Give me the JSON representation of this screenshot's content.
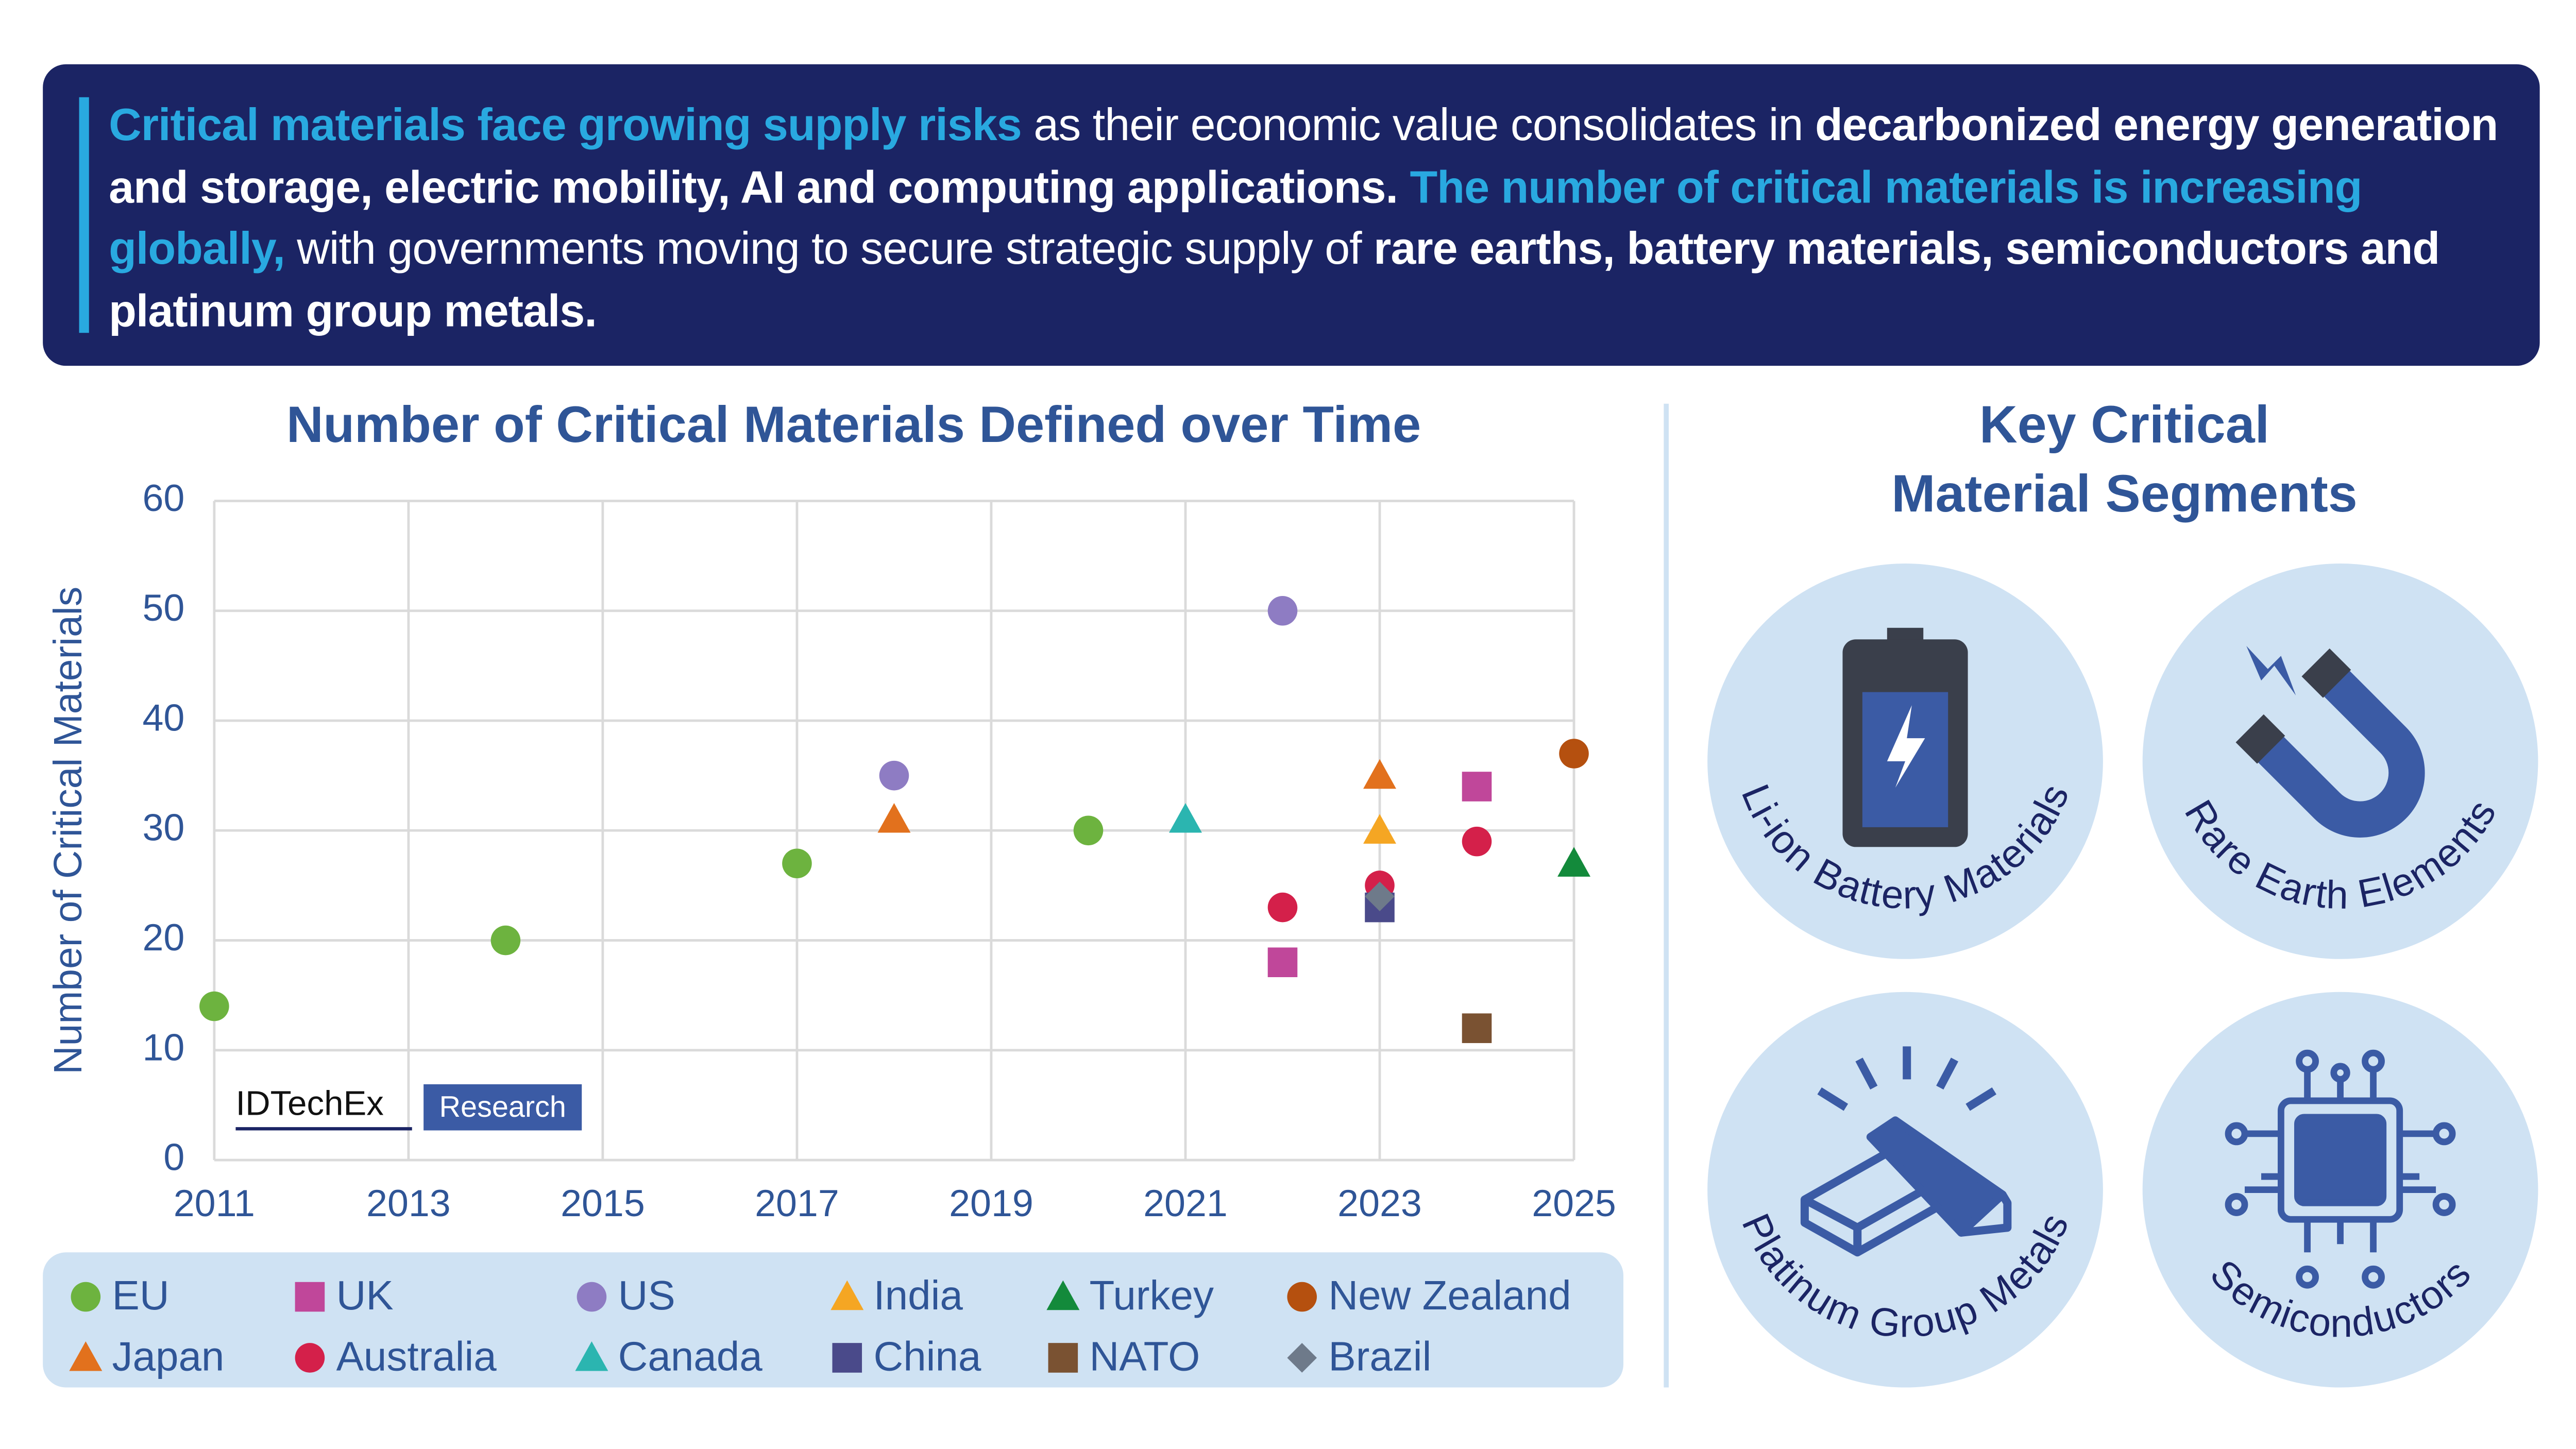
{
  "header": {
    "segments": [
      {
        "text": "Critical materials face growing supply risks",
        "style": "highlight"
      },
      {
        "text": " as their economic value consolidates in ",
        "style": "normal"
      },
      {
        "text": "decarbonized energy generation and storage, electric mobility, AI and computing applications.",
        "style": "bold"
      },
      {
        "text": " The number of critical materials is increasing globally,",
        "style": "highlight"
      },
      {
        "text": " with governments moving to secure strategic supply of ",
        "style": "normal"
      },
      {
        "text": "rare earths, battery materials, semiconductors and platinum group metals.",
        "style": "bold"
      }
    ]
  },
  "chart_data": {
    "type": "scatter",
    "title": "Number of Critical Materials Defined over Time",
    "y_label": "Number of Critical Materials",
    "xlim": [
      2011,
      2025
    ],
    "xticks": [
      2011,
      2013,
      2015,
      2017,
      2019,
      2021,
      2023,
      2025
    ],
    "ylim": [
      0,
      60
    ],
    "yticks": [
      0,
      10,
      20,
      30,
      40,
      50,
      60
    ],
    "grid": true,
    "series": [
      {
        "name": "EU",
        "color": "#6db33f",
        "marker": "circle",
        "x": [
          2011,
          2014,
          2017,
          2020
        ],
        "values": [
          14,
          20,
          27,
          30
        ]
      },
      {
        "name": "UK",
        "color": "#c0479a",
        "marker": "square",
        "x": [
          2022,
          2024
        ],
        "values": [
          18,
          34
        ]
      },
      {
        "name": "US",
        "color": "#8e7cc3",
        "marker": "circle",
        "x": [
          2018,
          2022
        ],
        "values": [
          35,
          50
        ]
      },
      {
        "name": "India",
        "color": "#f5a623",
        "marker": "triangle",
        "x": [
          2023
        ],
        "values": [
          30
        ]
      },
      {
        "name": "Turkey",
        "color": "#138a3b",
        "marker": "triangle",
        "x": [
          2025
        ],
        "values": [
          27
        ]
      },
      {
        "name": "New Zealand",
        "color": "#b5500f",
        "marker": "circle",
        "x": [
          2025
        ],
        "values": [
          37
        ]
      },
      {
        "name": "Japan",
        "color": "#e2711d",
        "marker": "triangle",
        "x": [
          2018,
          2023
        ],
        "values": [
          31,
          35
        ]
      },
      {
        "name": "Australia",
        "color": "#d4204a",
        "marker": "circle",
        "x": [
          2022,
          2023,
          2024
        ],
        "values": [
          23,
          25,
          29
        ]
      },
      {
        "name": "Canada",
        "color": "#2bb5b0",
        "marker": "triangle",
        "x": [
          2021
        ],
        "values": [
          31
        ]
      },
      {
        "name": "China",
        "color": "#4a4a8a",
        "marker": "square",
        "x": [
          2023
        ],
        "values": [
          23
        ]
      },
      {
        "name": "NATO",
        "color": "#7a5232",
        "marker": "square",
        "x": [
          2024
        ],
        "values": [
          12
        ]
      },
      {
        "name": "Brazil",
        "color": "#6e7a8a",
        "marker": "diamond",
        "x": [
          2023
        ],
        "values": [
          24
        ]
      }
    ]
  },
  "logo": {
    "name": "IDTechEx",
    "tag": "Research"
  },
  "segments_panel": {
    "title": [
      "Key Critical",
      "Material Segments"
    ],
    "items": [
      "Li-ion Battery Materials",
      "Rare Earth Elements",
      "Platinum Group Metals",
      "Semiconductors"
    ]
  }
}
